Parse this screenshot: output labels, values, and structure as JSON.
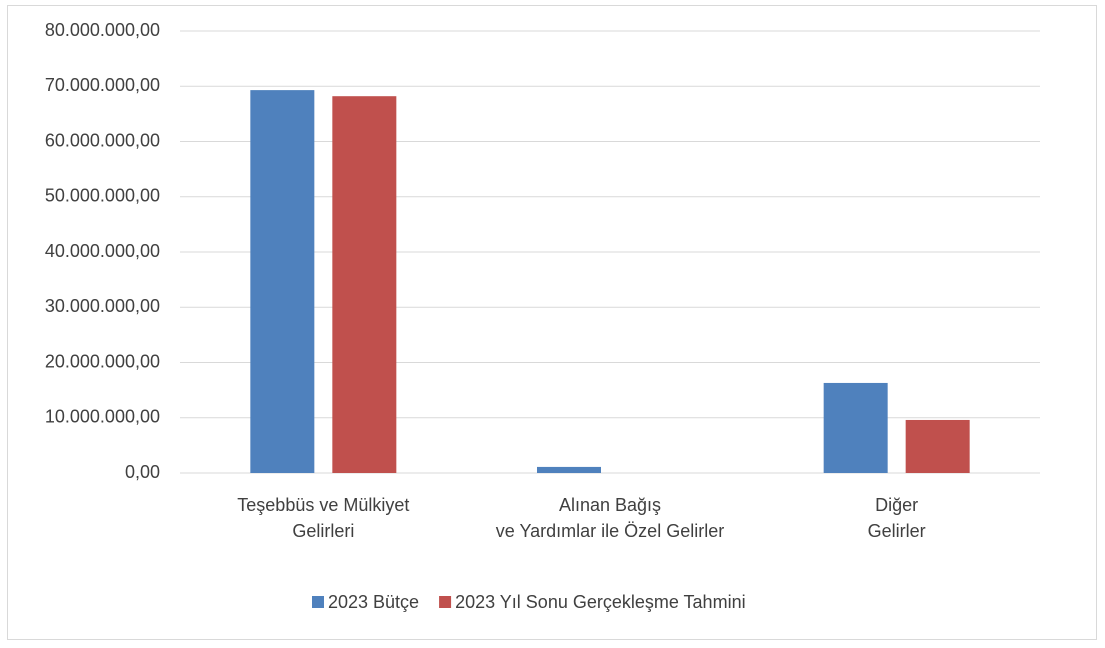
{
  "chart_data": {
    "type": "bar",
    "categories": [
      [
        "Teşebbüs ve Mülkiyet",
        "Gelirleri"
      ],
      [
        "Alınan Bağış",
        "ve Yardımlar ile Özel Gelirler"
      ],
      [
        "Diğer",
        "Gelirler"
      ]
    ],
    "series": [
      {
        "name": "2023 Bütçe",
        "color": "#4f81bd",
        "values": [
          69300000,
          1100000,
          16300000
        ]
      },
      {
        "name": "2023 Yıl Sonu Gerçekleşme Tahmini",
        "color": "#c0504d",
        "values": [
          68200000,
          0,
          9600000
        ]
      }
    ],
    "ylim": [
      0,
      80000000
    ],
    "yticks": [
      {
        "value": 0,
        "label": "0,00"
      },
      {
        "value": 10000000,
        "label": "10.000.000,00"
      },
      {
        "value": 20000000,
        "label": "20.000.000,00"
      },
      {
        "value": 30000000,
        "label": "30.000.000,00"
      },
      {
        "value": 40000000,
        "label": "40.000.000,00"
      },
      {
        "value": 50000000,
        "label": "50.000.000,00"
      },
      {
        "value": 60000000,
        "label": "60.000.000,00"
      },
      {
        "value": 70000000,
        "label": "70.000.000,00"
      },
      {
        "value": 80000000,
        "label": "80.000.000,00"
      }
    ],
    "grid": true,
    "legend": "bottom"
  }
}
